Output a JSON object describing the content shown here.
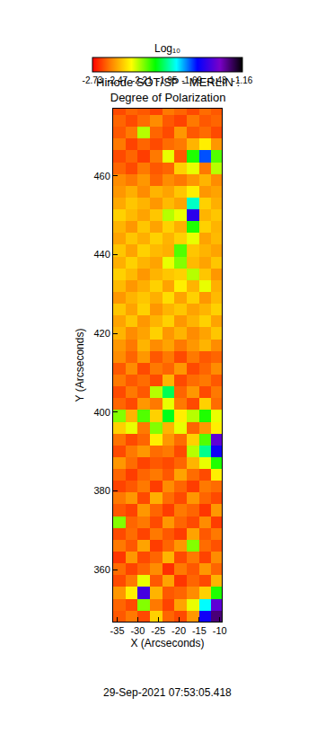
{
  "chart_data": {
    "type": "heatmap",
    "title": "Hinode SOT/SP - MERLIN : Degree of Polarization",
    "xlabel": "X (Arcseconds)",
    "ylabel": "Y (Arcseconds)",
    "annotations": [
      "29-Sep-2021 07:53:05.418"
    ],
    "xlim": [
      -36,
      -9.5
    ],
    "ylim": [
      346.8,
      477.1
    ],
    "xticks": [
      -35,
      -30,
      -25,
      -20,
      -15,
      -10
    ],
    "yticks": [
      360,
      380,
      400,
      420,
      440,
      460
    ],
    "colorbar": {
      "title": "Log₁₀",
      "range": [
        -2.73,
        -1.16
      ],
      "ticks": [
        -2.73,
        -2.47,
        -2.21,
        -1.95,
        -1.69,
        -1.43,
        -1.16
      ]
    },
    "x": [
      -34.5,
      -31.5,
      -28.5,
      -25.5,
      -22.5,
      -19.5,
      -16.5,
      -13.5,
      -10.5
    ],
    "y": [
      348,
      351,
      354,
      357,
      360,
      363,
      366,
      369,
      372,
      375,
      378,
      381,
      384,
      387,
      390,
      393,
      396,
      399,
      402,
      405,
      408,
      411,
      414,
      417,
      420,
      423,
      426,
      429,
      432,
      435,
      438,
      441,
      444,
      447,
      450,
      453,
      456,
      459,
      462,
      465,
      468,
      471,
      474,
      477
    ],
    "z": [
      [
        -2.6,
        -2.55,
        -2.62,
        -2.4,
        -2.58,
        -2.62,
        -2.5,
        -1.6,
        -1.3
      ],
      [
        -2.58,
        -2.62,
        -2.2,
        -2.55,
        -2.63,
        -2.48,
        -2.3,
        -1.85,
        -1.45
      ],
      [
        -2.5,
        -2.35,
        -1.5,
        -2.45,
        -2.6,
        -2.58,
        -2.52,
        -2.4,
        -2.1
      ],
      [
        -2.62,
        -2.55,
        -2.3,
        -2.6,
        -2.48,
        -2.65,
        -2.58,
        -2.62,
        -2.45
      ],
      [
        -2.57,
        -2.63,
        -2.58,
        -2.52,
        -2.66,
        -2.55,
        -2.6,
        -2.5,
        -2.58
      ],
      [
        -2.65,
        -2.5,
        -2.62,
        -2.58,
        -2.45,
        -2.62,
        -2.55,
        -2.63,
        -2.52
      ],
      [
        -2.55,
        -2.6,
        -2.48,
        -2.64,
        -2.58,
        -2.5,
        -2.2,
        -2.57,
        -2.61
      ],
      [
        -2.62,
        -2.57,
        -2.63,
        -2.55,
        -2.6,
        -2.64,
        -2.48,
        -2.6,
        -2.55
      ],
      [
        -2.2,
        -2.58,
        -2.55,
        -2.62,
        -2.5,
        -2.58,
        -2.62,
        -2.52,
        -2.64
      ],
      [
        -2.6,
        -2.63,
        -2.5,
        -2.58,
        -2.64,
        -2.55,
        -2.58,
        -2.65,
        -2.5
      ],
      [
        -2.55,
        -2.5,
        -2.62,
        -2.46,
        -2.57,
        -2.62,
        -2.5,
        -2.58,
        -2.62
      ],
      [
        -2.63,
        -2.6,
        -2.55,
        -2.64,
        -2.52,
        -2.58,
        -2.64,
        -2.55,
        -2.57
      ],
      [
        -2.58,
        -2.64,
        -2.58,
        -2.55,
        -2.6,
        -2.48,
        -2.57,
        -2.62,
        -2.35
      ],
      [
        -2.5,
        -2.57,
        -2.63,
        -2.6,
        -2.62,
        -2.58,
        -2.45,
        -2.3,
        -2.1
      ],
      [
        -2.62,
        -2.55,
        -2.5,
        -2.57,
        -2.55,
        -2.62,
        -2.25,
        -1.95,
        -1.6
      ],
      [
        -2.56,
        -2.62,
        -2.58,
        -2.35,
        -2.5,
        -2.57,
        -2.4,
        -2.15,
        -1.45
      ],
      [
        -2.4,
        -2.3,
        -2.55,
        -2.2,
        -2.45,
        -2.3,
        -2.58,
        -2.5,
        -2.35
      ],
      [
        -2.2,
        -2.45,
        -2.15,
        -2.4,
        -2.05,
        -2.35,
        -2.25,
        -2.1,
        -2.3
      ],
      [
        -2.58,
        -2.62,
        -2.5,
        -2.55,
        -2.3,
        -2.55,
        -2.62,
        -2.4,
        -2.57
      ],
      [
        -2.62,
        -2.55,
        -2.6,
        -2.25,
        -2.0,
        -2.58,
        -2.5,
        -2.62,
        -2.55
      ],
      [
        -2.55,
        -2.6,
        -2.57,
        -2.62,
        -2.45,
        -2.62,
        -2.57,
        -2.55,
        -2.6
      ],
      [
        -2.6,
        -2.52,
        -2.62,
        -2.55,
        -2.58,
        -2.5,
        -2.62,
        -2.58,
        -2.52
      ],
      [
        -2.52,
        -2.58,
        -2.5,
        -2.6,
        -2.55,
        -2.62,
        -2.55,
        -2.6,
        -2.58
      ],
      [
        -2.5,
        -2.55,
        -2.45,
        -2.52,
        -2.48,
        -2.55,
        -2.5,
        -2.45,
        -2.52
      ],
      [
        -2.45,
        -2.52,
        -2.48,
        -2.4,
        -2.5,
        -2.45,
        -2.52,
        -2.48,
        -2.42
      ],
      [
        -2.48,
        -2.42,
        -2.5,
        -2.45,
        -2.4,
        -2.5,
        -2.45,
        -2.4,
        -2.48
      ],
      [
        -2.42,
        -2.48,
        -2.4,
        -2.5,
        -2.45,
        -2.42,
        -2.48,
        -2.45,
        -2.4
      ],
      [
        -2.5,
        -2.45,
        -2.42,
        -2.46,
        -2.38,
        -2.48,
        -2.4,
        -2.5,
        -2.44
      ],
      [
        -2.44,
        -2.5,
        -2.46,
        -2.4,
        -2.48,
        -2.35,
        -2.45,
        -2.3,
        -2.46
      ],
      [
        -2.4,
        -2.44,
        -2.5,
        -2.45,
        -2.42,
        -2.4,
        -2.25,
        -2.42,
        -2.5
      ],
      [
        -2.46,
        -2.4,
        -2.45,
        -2.48,
        -2.3,
        -2.2,
        -2.44,
        -2.48,
        -2.42
      ],
      [
        -2.42,
        -2.48,
        -2.4,
        -2.44,
        -2.46,
        -2.15,
        -2.42,
        -2.45,
        -2.48
      ],
      [
        -2.48,
        -2.42,
        -2.46,
        -2.4,
        -2.45,
        -2.4,
        -2.3,
        -2.48,
        -2.44
      ],
      [
        -2.45,
        -2.5,
        -2.42,
        -2.48,
        -2.4,
        -2.46,
        -2.1,
        -2.4,
        -2.45
      ],
      [
        -2.4,
        -2.44,
        -2.48,
        -2.42,
        -2.25,
        -2.3,
        -1.55,
        -2.45,
        -2.42
      ],
      [
        -2.47,
        -2.42,
        -2.45,
        -2.5,
        -2.44,
        -2.48,
        -1.9,
        -2.4,
        -2.46
      ],
      [
        -2.5,
        -2.46,
        -2.52,
        -2.45,
        -2.48,
        -2.42,
        -2.35,
        -2.5,
        -2.48
      ],
      [
        -2.52,
        -2.55,
        -2.5,
        -2.58,
        -2.52,
        -2.55,
        -2.5,
        -2.45,
        -2.52
      ],
      [
        -2.58,
        -2.62,
        -2.55,
        -2.6,
        -2.58,
        -2.4,
        -2.3,
        -2.55,
        -2.25
      ],
      [
        -2.62,
        -2.58,
        -2.64,
        -2.55,
        -2.3,
        -2.6,
        -2.1,
        -1.7,
        -2.15
      ],
      [
        -2.55,
        -2.63,
        -2.58,
        -2.62,
        -2.57,
        -2.55,
        -2.45,
        -2.35,
        -2.5
      ],
      [
        -2.6,
        -2.55,
        -2.25,
        -2.58,
        -2.62,
        -2.5,
        -2.6,
        -2.57,
        -2.62
      ],
      [
        -2.58,
        -2.62,
        -2.57,
        -2.52,
        -2.6,
        -2.63,
        -2.55,
        -2.6,
        -2.58
      ],
      [
        -2.62,
        -2.58,
        -2.6,
        -2.63,
        -2.55,
        -2.58,
        -2.62,
        -2.57,
        -2.6
      ]
    ]
  }
}
